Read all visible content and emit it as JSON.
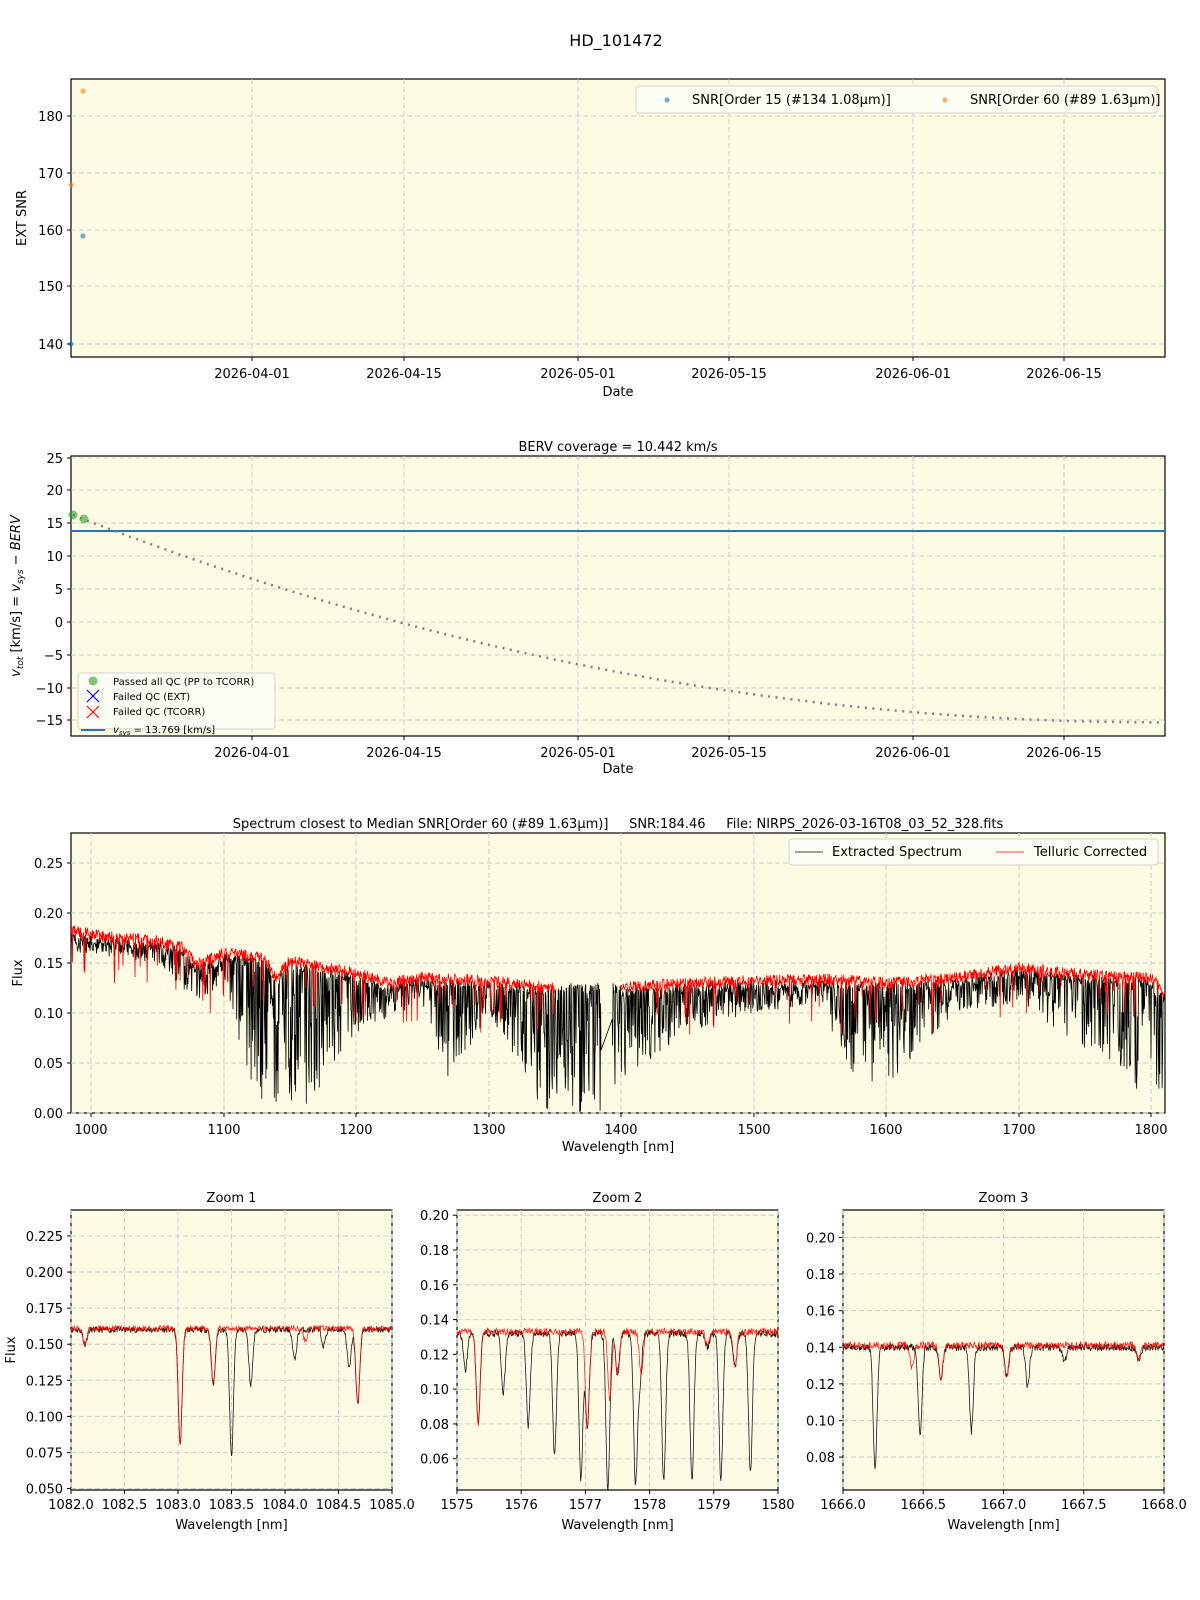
{
  "figure": {
    "suptitle": "HD_101472",
    "background_color": "#fdfbe3"
  },
  "chart_data": [
    {
      "id": "snr",
      "type": "scatter",
      "title": "",
      "xlabel": "Date",
      "ylabel": "EXT SNR",
      "x_ticks": [
        "2026-04-01",
        "2026-04-15",
        "2026-05-01",
        "2026-05-15",
        "2026-06-01",
        "2026-06-15"
      ],
      "y_ticks": [
        "140",
        "150",
        "160",
        "170",
        "180"
      ],
      "ylim": [
        137.5,
        186.5
      ],
      "grid": true,
      "legend_position": "upper right",
      "series": [
        {
          "name": "SNR[Order 15 (#134 1.08μm)]",
          "color": "#1f77b4",
          "points": [
            {
              "x": "2026-03-16",
              "y": 139.5
            },
            {
              "x": "2026-03-17",
              "y": 158.8
            }
          ]
        },
        {
          "name": "SNR[Order 60 (#89 1.63μm)]",
          "color": "#ff7f0e",
          "points": [
            {
              "x": "2026-03-16",
              "y": 167.8
            },
            {
              "x": "2026-03-17",
              "y": 184.5
            }
          ]
        }
      ]
    },
    {
      "id": "berv",
      "type": "line",
      "title": "BERV coverage = 10.442 km/s",
      "xlabel": "Date",
      "ylabel": "v_tot [km/s] = v_sys − BERV",
      "x_ticks": [
        "2026-04-01",
        "2026-04-15",
        "2026-05-01",
        "2026-05-15",
        "2026-06-01",
        "2026-06-15"
      ],
      "y_ticks": [
        "−15",
        "−10",
        "−5",
        "0",
        "5",
        "10",
        "15",
        "20",
        "25"
      ],
      "ylim": [
        -17.5,
        25.3
      ],
      "grid": true,
      "legend_position": "lower left",
      "legend": [
        {
          "label": "Passed all QC (PP to TCORR)",
          "marker": "circle",
          "color": "#2ca02c"
        },
        {
          "label": "Failed QC (EXT)",
          "marker": "x",
          "color": "#0000ff"
        },
        {
          "label": "Failed QC (TCORR)",
          "marker": "x",
          "color": "#ff0000"
        },
        {
          "label": "v_sys = 13.769 [km/s]",
          "marker": "line",
          "color": "#1f77b4"
        }
      ],
      "vsys": 13.769,
      "passed_points": [
        {
          "x": "2026-03-16",
          "y": 16.3
        },
        {
          "x": "2026-03-17",
          "y": 15.7
        }
      ],
      "berv_curve": {
        "style": "dotted",
        "color": "#808080",
        "x": [
          "2026-03-16",
          "2026-04-01",
          "2026-04-15",
          "2026-05-01",
          "2026-05-15",
          "2026-06-01",
          "2026-06-15",
          "2026-06-23"
        ],
        "y": [
          16.3,
          7.8,
          1.2,
          -5.2,
          -10.0,
          -13.8,
          -15.1,
          -15.3
        ]
      }
    },
    {
      "id": "spectrum",
      "type": "line",
      "title": "Spectrum closest to Median SNR[Order 60 (#89 1.63μm)]     SNR:184.46     File: NIRPS_2026-03-16T08_03_52_328.fits",
      "xlabel": "Wavelength [nm]",
      "ylabel": "Flux",
      "x_ticks": [
        "1000",
        "1100",
        "1200",
        "1300",
        "1400",
        "1500",
        "1600",
        "1700",
        "1800"
      ],
      "y_ticks": [
        "0.00",
        "0.05",
        "0.10",
        "0.15",
        "0.20",
        "0.25"
      ],
      "xlim": [
        985,
        1810
      ],
      "ylim": [
        0.0,
        0.28
      ],
      "grid": true,
      "legend_position": "upper right",
      "series": [
        {
          "name": "Extracted Spectrum",
          "color": "#000000",
          "x": [
            985,
            1000,
            1050,
            1080,
            1100,
            1130,
            1150,
            1200,
            1250,
            1270,
            1300,
            1350,
            1380,
            1400,
            1450,
            1500,
            1550,
            1575,
            1610,
            1650,
            1700,
            1750,
            1800,
            1810
          ],
          "y": [
            0.18,
            0.178,
            0.17,
            0.13,
            0.15,
            0.0,
            0.0,
            0.1,
            0.13,
            0.05,
            0.12,
            0.0,
            0.0,
            0.05,
            0.1,
            0.12,
            0.13,
            0.05,
            0.05,
            0.12,
            0.13,
            0.08,
            0.03,
            0.04
          ]
        },
        {
          "name": "Telluric Corrected",
          "color": "#ff0000",
          "x": [
            985,
            1000,
            1050,
            1070,
            1080,
            1100,
            1130,
            1140,
            1150,
            1200,
            1225,
            1250,
            1300,
            1350,
            1390,
            1400,
            1450,
            1500,
            1550,
            1600,
            1650,
            1700,
            1750,
            1800,
            1810
          ],
          "y": [
            0.183,
            0.178,
            0.172,
            0.165,
            0.148,
            0.16,
            0.155,
            0.135,
            0.152,
            0.14,
            0.13,
            0.135,
            0.132,
            0.125,
            null,
            0.125,
            0.13,
            0.132,
            0.134,
            0.13,
            0.135,
            0.145,
            0.138,
            0.135,
            0.12
          ]
        }
      ]
    },
    {
      "id": "zoom1",
      "type": "line",
      "title": "Zoom 1",
      "xlabel": "Wavelength [nm]",
      "ylabel": "Flux",
      "x_ticks": [
        "1082.0",
        "1082.5",
        "1083.0",
        "1083.5",
        "1084.0",
        "1084.5",
        "1085.0"
      ],
      "y_ticks": [
        "0.050",
        "0.075",
        "0.100",
        "0.125",
        "0.150",
        "0.175",
        "0.200",
        "0.225"
      ],
      "xlim": [
        1082.0,
        1085.0
      ],
      "ylim": [
        0.049,
        0.243
      ],
      "grid": true,
      "lines": [
        {
          "series": "Extracted Spectrum",
          "continuum": 0.16,
          "absorption": [
            {
              "x": 1082.13,
              "depth": 0.15
            },
            {
              "x": 1083.02,
              "depth": 0.081
            },
            {
              "x": 1083.33,
              "depth": 0.122
            },
            {
              "x": 1083.5,
              "depth": 0.072
            },
            {
              "x": 1083.68,
              "depth": 0.122
            },
            {
              "x": 1084.09,
              "depth": 0.139
            },
            {
              "x": 1084.36,
              "depth": 0.149
            },
            {
              "x": 1084.6,
              "depth": 0.133
            },
            {
              "x": 1084.68,
              "depth": 0.108
            }
          ]
        },
        {
          "series": "Telluric Corrected",
          "continuum": 0.161,
          "absorption": [
            {
              "x": 1082.13,
              "depth": 0.15
            },
            {
              "x": 1083.02,
              "depth": 0.081
            },
            {
              "x": 1083.33,
              "depth": 0.122
            },
            {
              "x": 1084.19,
              "depth": 0.152
            },
            {
              "x": 1084.68,
              "depth": 0.108
            }
          ]
        }
      ]
    },
    {
      "id": "zoom2",
      "type": "line",
      "title": "Zoom 2",
      "xlabel": "Wavelength [nm]",
      "ylabel": "",
      "x_ticks": [
        "1575",
        "1576",
        "1577",
        "1578",
        "1579",
        "1580"
      ],
      "y_ticks": [
        "0.06",
        "0.08",
        "0.10",
        "0.12",
        "0.14",
        "0.16",
        "0.18",
        "0.20"
      ],
      "xlim": [
        1575,
        1580
      ],
      "ylim": [
        0.042,
        0.203
      ],
      "grid": true,
      "lines": [
        {
          "series": "Extracted Spectrum",
          "continuum": 0.132,
          "absorption": [
            {
              "x": 1575.13,
              "depth": 0.111
            },
            {
              "x": 1575.33,
              "depth": 0.08
            },
            {
              "x": 1575.72,
              "depth": 0.098
            },
            {
              "x": 1576.11,
              "depth": 0.078
            },
            {
              "x": 1576.52,
              "depth": 0.062
            },
            {
              "x": 1576.93,
              "depth": 0.048
            },
            {
              "x": 1577.03,
              "depth": 0.077
            },
            {
              "x": 1577.35,
              "depth": 0.042
            },
            {
              "x": 1577.5,
              "depth": 0.108
            },
            {
              "x": 1577.78,
              "depth": 0.047
            },
            {
              "x": 1577.85,
              "depth": 0.106
            },
            {
              "x": 1578.22,
              "depth": 0.047
            },
            {
              "x": 1578.66,
              "depth": 0.047
            },
            {
              "x": 1578.9,
              "depth": 0.124
            },
            {
              "x": 1579.11,
              "depth": 0.048
            },
            {
              "x": 1579.33,
              "depth": 0.112
            },
            {
              "x": 1579.57,
              "depth": 0.052
            }
          ]
        },
        {
          "series": "Telluric Corrected",
          "continuum": 0.133,
          "absorption": [
            {
              "x": 1575.33,
              "depth": 0.08
            },
            {
              "x": 1577.03,
              "depth": 0.077
            },
            {
              "x": 1577.38,
              "depth": 0.094
            },
            {
              "x": 1577.5,
              "depth": 0.11
            },
            {
              "x": 1577.87,
              "depth": 0.109
            },
            {
              "x": 1578.9,
              "depth": 0.125
            },
            {
              "x": 1579.33,
              "depth": 0.112
            }
          ]
        }
      ]
    },
    {
      "id": "zoom3",
      "type": "line",
      "title": "Zoom 3",
      "xlabel": "Wavelength [nm]",
      "ylabel": "",
      "x_ticks": [
        "1666.0",
        "1666.5",
        "1667.0",
        "1667.5",
        "1668.0"
      ],
      "y_ticks": [
        "0.08",
        "0.10",
        "0.12",
        "0.14",
        "0.16",
        "0.18",
        "0.20"
      ],
      "xlim": [
        1666.0,
        1668.0
      ],
      "ylim": [
        0.062,
        0.215
      ],
      "grid": true,
      "lines": [
        {
          "series": "Extracted Spectrum",
          "continuum": 0.14,
          "absorption": [
            {
              "x": 1666.2,
              "depth": 0.073
            },
            {
              "x": 1666.48,
              "depth": 0.092
            },
            {
              "x": 1666.61,
              "depth": 0.123
            },
            {
              "x": 1666.8,
              "depth": 0.094
            },
            {
              "x": 1667.02,
              "depth": 0.123
            },
            {
              "x": 1667.15,
              "depth": 0.119
            },
            {
              "x": 1667.38,
              "depth": 0.133
            },
            {
              "x": 1667.84,
              "depth": 0.133
            }
          ]
        },
        {
          "series": "Telluric Corrected",
          "continuum": 0.141,
          "absorption": [
            {
              "x": 1666.43,
              "depth": 0.129
            },
            {
              "x": 1666.61,
              "depth": 0.123
            },
            {
              "x": 1667.02,
              "depth": 0.123
            },
            {
              "x": 1667.84,
              "depth": 0.133
            }
          ]
        }
      ]
    }
  ],
  "labels": {
    "snr_xlabel": "Date",
    "snr_ylabel": "EXT SNR",
    "snr_legend_1": "SNR[Order 15 (#134 1.08μm)]",
    "snr_legend_2": "SNR[Order 60 (#89 1.63μm)]",
    "berv_title": "BERV coverage = 10.442 km/s",
    "berv_xlabel": "Date",
    "berv_legend_1": "Passed all QC (PP to TCORR)",
    "berv_legend_2": "Failed QC (EXT)",
    "berv_legend_3": "Failed QC (TCORR)",
    "berv_legend_4": " = 13.769 [km/s]",
    "spec_title": "Spectrum closest to Median SNR[Order 60 (#89 1.63μm)]     SNR:184.46     File: NIRPS_2026-03-16T08_03_52_328.fits",
    "spec_xlabel": "Wavelength [nm]",
    "spec_ylabel": "Flux",
    "spec_legend_1": "Extracted Spectrum",
    "spec_legend_2": "Telluric Corrected",
    "zoom1_title": "Zoom 1",
    "zoom2_title": "Zoom 2",
    "zoom3_title": "Zoom 3",
    "zoom_xlabel": "Wavelength [nm]",
    "zoom_ylabel": "Flux"
  }
}
